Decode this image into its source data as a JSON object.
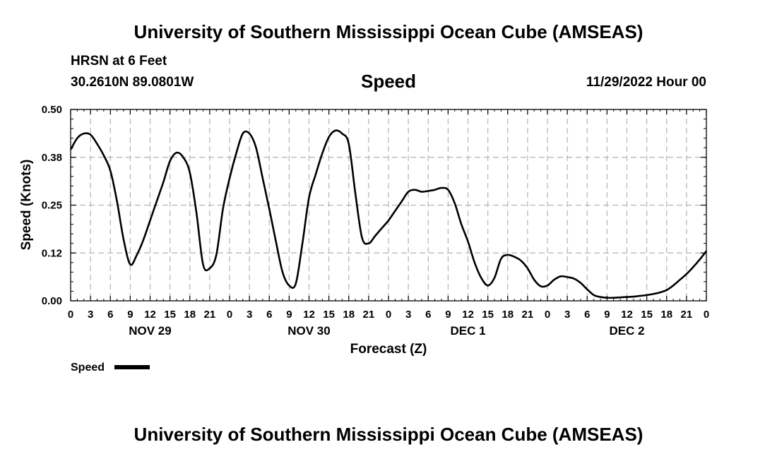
{
  "header": {
    "title": "University of Southern Mississippi Ocean Cube (AMSEAS)",
    "station": "HRSN at 6 Feet",
    "coords": "30.2610N  89.0801W",
    "variable": "Speed",
    "run": "11/29/2022 Hour 00"
  },
  "footer": {
    "title": "University of Southern Mississippi Ocean Cube (AMSEAS)"
  },
  "colors": {
    "line": "#000000",
    "grid": "#b4b4b4",
    "background": "#ffffff"
  },
  "chart_data": {
    "type": "line",
    "title": "Speed",
    "xlabel": "Forecast (Z)",
    "ylabel": "Speed (Knots)",
    "xlim": [
      0,
      96
    ],
    "ylim": [
      0,
      0.5
    ],
    "yticks": [
      0,
      0.125,
      0.25,
      0.375,
      0.5
    ],
    "ytick_labels": [
      "0.00",
      "0.12",
      "0.25",
      "0.38",
      "0.50"
    ],
    "xticks": [
      0,
      3,
      6,
      9,
      12,
      15,
      18,
      21,
      24,
      27,
      30,
      33,
      36,
      39,
      42,
      45,
      48,
      51,
      54,
      57,
      60,
      63,
      66,
      69,
      72,
      75,
      78,
      81,
      84,
      87,
      90,
      93,
      96
    ],
    "xtick_labels": [
      "0",
      "3",
      "6",
      "9",
      "12",
      "15",
      "18",
      "21",
      "0",
      "3",
      "6",
      "9",
      "12",
      "15",
      "18",
      "21",
      "0",
      "3",
      "6",
      "9",
      "12",
      "15",
      "18",
      "21",
      "0",
      "3",
      "6",
      "9",
      "12",
      "15",
      "18",
      "21",
      "0"
    ],
    "day_labels": [
      {
        "hour": 12,
        "label": "NOV 29"
      },
      {
        "hour": 36,
        "label": "NOV 30"
      },
      {
        "hour": 60,
        "label": "DEC 1"
      },
      {
        "hour": 84,
        "label": "DEC 2"
      }
    ],
    "grid": true,
    "legend": {
      "label": "Speed",
      "placement": "bottom-left"
    },
    "series": [
      {
        "name": "Speed",
        "x": [
          0,
          1,
          2,
          3,
          4,
          5,
          6,
          7,
          8,
          9,
          10,
          11,
          12,
          13,
          14,
          15,
          16,
          17,
          18,
          19,
          20,
          21,
          22,
          23,
          24,
          25,
          26,
          27,
          28,
          29,
          30,
          31,
          32,
          33,
          34,
          35,
          36,
          37,
          38,
          39,
          40,
          41,
          42,
          43,
          44,
          45,
          46,
          47,
          48,
          49,
          50,
          51,
          52,
          53,
          54,
          55,
          56,
          57,
          58,
          59,
          60,
          61,
          62,
          63,
          64,
          65,
          66,
          67,
          68,
          69,
          70,
          71,
          72,
          73,
          74,
          75,
          76,
          77,
          78,
          79,
          80,
          81,
          82,
          83,
          84,
          85,
          86,
          87,
          88,
          89,
          90,
          91,
          92,
          93,
          94,
          95,
          96
        ],
        "values": [
          0.395,
          0.425,
          0.437,
          0.434,
          0.41,
          0.38,
          0.34,
          0.26,
          0.16,
          0.095,
          0.12,
          0.16,
          0.21,
          0.26,
          0.31,
          0.365,
          0.387,
          0.375,
          0.335,
          0.23,
          0.095,
          0.085,
          0.12,
          0.24,
          0.32,
          0.385,
          0.437,
          0.437,
          0.4,
          0.32,
          0.24,
          0.155,
          0.075,
          0.04,
          0.045,
          0.15,
          0.27,
          0.33,
          0.385,
          0.428,
          0.445,
          0.437,
          0.41,
          0.28,
          0.165,
          0.15,
          0.17,
          0.19,
          0.21,
          0.235,
          0.26,
          0.285,
          0.29,
          0.285,
          0.287,
          0.29,
          0.295,
          0.29,
          0.255,
          0.2,
          0.155,
          0.1,
          0.06,
          0.04,
          0.06,
          0.11,
          0.12,
          0.115,
          0.105,
          0.085,
          0.055,
          0.038,
          0.04,
          0.055,
          0.064,
          0.062,
          0.058,
          0.047,
          0.03,
          0.015,
          0.01,
          0.008,
          0.008,
          0.009,
          0.01,
          0.011,
          0.013,
          0.015,
          0.018,
          0.022,
          0.028,
          0.04,
          0.055,
          0.07,
          0.088,
          0.108,
          0.13
        ]
      }
    ]
  }
}
